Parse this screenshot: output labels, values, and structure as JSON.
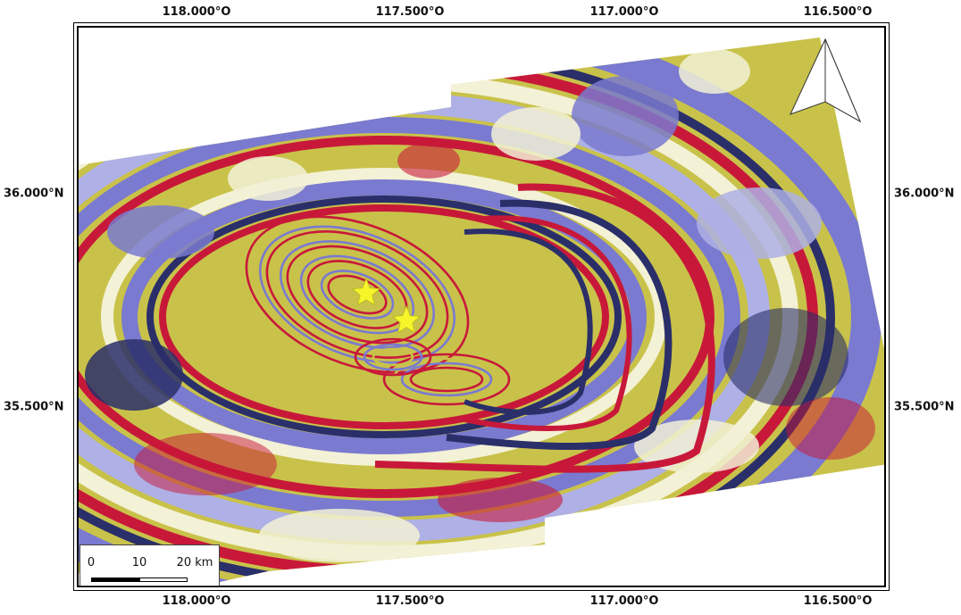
{
  "map": {
    "graticule": {
      "lon_labels": [
        "118.000°O",
        "117.500°O",
        "117.000°O",
        "116.500°O"
      ],
      "lat_labels": [
        "36.000°N",
        "35.500°N"
      ]
    },
    "colors": {
      "fringe_red": "#c8183a",
      "fringe_dark_blue": "#2a2f6a",
      "fringe_blue": "#7a7ad0",
      "fringe_light_blue": "#aeb0e6",
      "fringe_yellow": "#c9c24a",
      "fringe_white": "#f3f1d6"
    },
    "markers": [
      {
        "name": "epicenter-star-1",
        "symbol": "star",
        "color": "#f5f52a"
      },
      {
        "name": "epicenter-star-2",
        "symbol": "star",
        "color": "#f5f52a"
      }
    ],
    "north_arrow": {
      "icon": "north-arrow-icon"
    },
    "scale_bar": {
      "labels": [
        "0",
        "10",
        "20 km"
      ]
    }
  }
}
